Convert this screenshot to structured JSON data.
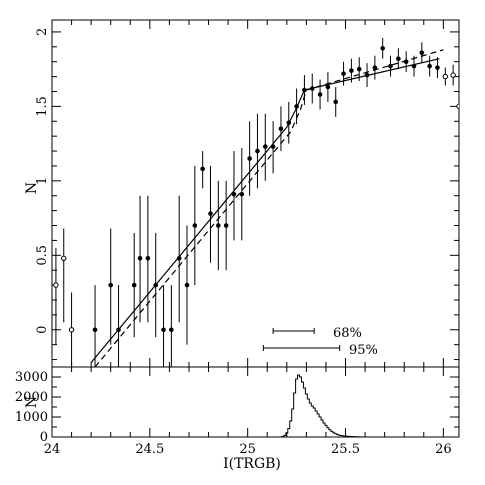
{
  "chart_data": [
    {
      "type": "scatter",
      "title": "",
      "xlabel": "",
      "ylabel": "N",
      "xlim": [
        24.0,
        26.08
      ],
      "ylim": [
        -0.25,
        2.08
      ],
      "x_ticks": [
        24,
        24.5,
        25,
        25.5,
        26
      ],
      "y_ticks": [
        0,
        0.5,
        1,
        1.5,
        2
      ],
      "y_tick_labels": [
        "0",
        "0.5",
        "1",
        "1.5",
        "2"
      ],
      "series": [
        {
          "marker": "filled-circle",
          "points": [
            {
              "x": 24.22,
              "y": 0.0,
              "lo": -0.3,
              "hi": 0.3
            },
            {
              "x": 24.3,
              "y": 0.3,
              "lo": -0.1,
              "hi": 0.68
            },
            {
              "x": 24.34,
              "y": 0.0,
              "lo": -0.3,
              "hi": 0.3
            },
            {
              "x": 24.42,
              "y": 0.3,
              "lo": -0.05,
              "hi": 0.65
            },
            {
              "x": 24.45,
              "y": 0.48,
              "lo": 0.05,
              "hi": 0.9
            },
            {
              "x": 24.49,
              "y": 0.48,
              "lo": 0.05,
              "hi": 0.9
            },
            {
              "x": 24.53,
              "y": 0.3,
              "lo": -0.05,
              "hi": 0.65
            },
            {
              "x": 24.57,
              "y": 0.0,
              "lo": -0.3,
              "hi": 0.3
            },
            {
              "x": 24.61,
              "y": 0.0,
              "lo": -0.3,
              "hi": 0.3
            },
            {
              "x": 24.65,
              "y": 0.48,
              "lo": 0.05,
              "hi": 0.9
            },
            {
              "x": 24.69,
              "y": 0.3,
              "lo": -0.1,
              "hi": 0.7
            },
            {
              "x": 24.73,
              "y": 0.7,
              "lo": 0.3,
              "hi": 1.1
            },
            {
              "x": 24.77,
              "y": 1.08,
              "lo": 0.95,
              "hi": 1.2
            },
            {
              "x": 24.81,
              "y": 0.78,
              "lo": 0.45,
              "hi": 1.1
            },
            {
              "x": 24.85,
              "y": 0.7,
              "lo": 0.4,
              "hi": 1.0
            },
            {
              "x": 24.89,
              "y": 0.7,
              "lo": 0.4,
              "hi": 1.0
            },
            {
              "x": 24.93,
              "y": 0.91,
              "lo": 0.6,
              "hi": 1.2
            },
            {
              "x": 24.97,
              "y": 0.91,
              "lo": 0.6,
              "hi": 1.22
            },
            {
              "x": 25.01,
              "y": 1.15,
              "lo": 0.9,
              "hi": 1.4
            },
            {
              "x": 25.05,
              "y": 1.2,
              "lo": 0.95,
              "hi": 1.45
            },
            {
              "x": 25.09,
              "y": 1.23,
              "lo": 1.0,
              "hi": 1.45
            },
            {
              "x": 25.13,
              "y": 1.23,
              "lo": 1.05,
              "hi": 1.4
            },
            {
              "x": 25.17,
              "y": 1.35,
              "lo": 1.2,
              "hi": 1.5
            },
            {
              "x": 25.21,
              "y": 1.39,
              "lo": 1.25,
              "hi": 1.53
            },
            {
              "x": 25.25,
              "y": 1.5,
              "lo": 1.38,
              "hi": 1.62
            },
            {
              "x": 25.29,
              "y": 1.61,
              "lo": 1.51,
              "hi": 1.71
            },
            {
              "x": 25.33,
              "y": 1.62,
              "lo": 1.52,
              "hi": 1.72
            },
            {
              "x": 25.37,
              "y": 1.58,
              "lo": 1.48,
              "hi": 1.68
            },
            {
              "x": 25.41,
              "y": 1.63,
              "lo": 1.53,
              "hi": 1.73
            },
            {
              "x": 25.45,
              "y": 1.53,
              "lo": 1.43,
              "hi": 1.63
            },
            {
              "x": 25.49,
              "y": 1.72,
              "lo": 1.64,
              "hi": 1.8
            },
            {
              "x": 25.53,
              "y": 1.74,
              "lo": 1.66,
              "hi": 1.82
            },
            {
              "x": 25.57,
              "y": 1.75,
              "lo": 1.67,
              "hi": 1.83
            },
            {
              "x": 25.61,
              "y": 1.71,
              "lo": 1.63,
              "hi": 1.79
            },
            {
              "x": 25.65,
              "y": 1.76,
              "lo": 1.68,
              "hi": 1.84
            },
            {
              "x": 25.69,
              "y": 1.89,
              "lo": 1.82,
              "hi": 1.96
            },
            {
              "x": 25.73,
              "y": 1.77,
              "lo": 1.7,
              "hi": 1.84
            },
            {
              "x": 25.77,
              "y": 1.82,
              "lo": 1.75,
              "hi": 1.89
            },
            {
              "x": 25.81,
              "y": 1.8,
              "lo": 1.73,
              "hi": 1.87
            },
            {
              "x": 25.85,
              "y": 1.77,
              "lo": 1.7,
              "hi": 1.84
            },
            {
              "x": 25.89,
              "y": 1.86,
              "lo": 1.79,
              "hi": 1.93
            },
            {
              "x": 25.93,
              "y": 1.77,
              "lo": 1.7,
              "hi": 1.84
            },
            {
              "x": 25.97,
              "y": 1.76,
              "lo": 1.69,
              "hi": 1.83
            }
          ]
        },
        {
          "marker": "open-circle",
          "points": [
            {
              "x": 24.02,
              "y": 0.3,
              "lo": -0.1,
              "hi": 0.55
            },
            {
              "x": 24.06,
              "y": 0.48,
              "lo": 0.05,
              "hi": 0.68
            },
            {
              "x": 24.1,
              "y": 0.0,
              "lo": -0.25,
              "hi": 0.25
            },
            {
              "x": 26.01,
              "y": 1.7,
              "lo": 1.64,
              "hi": 1.76
            },
            {
              "x": 26.05,
              "y": 1.71,
              "lo": 1.64,
              "hi": 1.78
            },
            {
              "x": 26.08,
              "y": 1.5,
              "lo": 1.45,
              "hi": 1.55
            }
          ]
        }
      ],
      "fit_lines": [
        {
          "style": "solid",
          "x": [
            24.2,
            25.2,
            25.25,
            25.29,
            25.98
          ],
          "y": [
            -0.22,
            1.36,
            1.49,
            1.61,
            1.82
          ]
        },
        {
          "style": "dashed",
          "x": [
            24.22,
            25.22,
            25.27,
            25.3,
            26.0
          ],
          "y": [
            -0.25,
            1.33,
            1.48,
            1.61,
            1.88
          ]
        }
      ],
      "intervals": [
        {
          "label": "68%",
          "x_range": [
            25.13,
            25.34
          ]
        },
        {
          "label": "95%",
          "x_range": [
            25.08,
            25.47
          ]
        }
      ]
    },
    {
      "type": "line",
      "title": "",
      "xlabel": "I(TRGB)",
      "ylabel": "N",
      "xlim": [
        24.0,
        26.08
      ],
      "ylim": [
        0,
        3500
      ],
      "x_ticks": [
        24,
        24.5,
        25,
        25.5,
        26
      ],
      "x_tick_labels": [
        "24",
        "24.5",
        "25",
        "25.5",
        "26"
      ],
      "y_ticks": [
        0,
        1000,
        2000,
        3000
      ],
      "y_tick_labels": [
        "0",
        "1000",
        "2000",
        "3000"
      ],
      "histogram": {
        "bin_width": 0.01,
        "x": [
          25.18,
          25.19,
          25.2,
          25.21,
          25.22,
          25.23,
          25.24,
          25.25,
          25.26,
          25.27,
          25.28,
          25.29,
          25.3,
          25.31,
          25.32,
          25.33,
          25.34,
          25.35,
          25.36,
          25.37,
          25.38,
          25.39,
          25.4,
          25.41,
          25.42,
          25.43,
          25.44,
          25.45,
          25.46,
          25.47,
          25.48,
          25.5,
          25.52,
          25.54,
          25.56,
          25.58,
          25.6
        ],
        "counts": [
          30,
          80,
          200,
          420,
          800,
          1400,
          2200,
          2900,
          3100,
          3000,
          2750,
          2450,
          2150,
          1900,
          1700,
          1550,
          1450,
          1300,
          1150,
          1000,
          850,
          700,
          580,
          460,
          360,
          280,
          210,
          160,
          120,
          90,
          70,
          45,
          30,
          20,
          12,
          6,
          0
        ]
      }
    }
  ]
}
